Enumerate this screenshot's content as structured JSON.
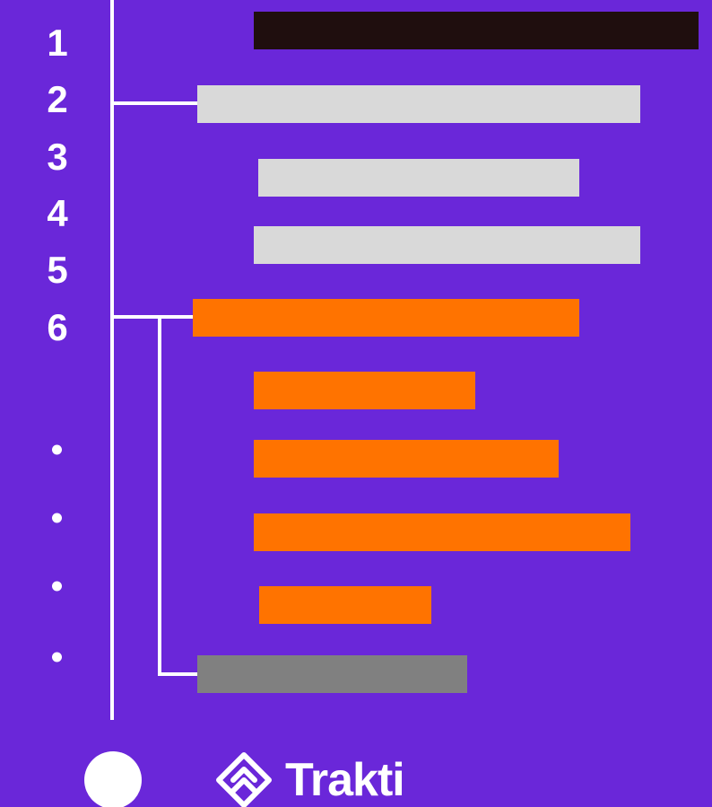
{
  "colors": {
    "background": "#6a27d9",
    "line": "#ffffff"
  },
  "numbers": [
    "1",
    "2",
    "3",
    "4",
    "5",
    "6"
  ],
  "bars": [
    {
      "color": "#1f0e0e"
    },
    {
      "color": "#d9d9d9"
    },
    {
      "color": "#d9d9d9"
    },
    {
      "color": "#d9d9d9"
    },
    {
      "color": "#ff7300"
    },
    {
      "color": "#ff7300"
    },
    {
      "color": "#ff7300"
    },
    {
      "color": "#ff7300"
    },
    {
      "color": "#ff7300"
    },
    {
      "color": "#808080"
    }
  ],
  "brand": {
    "name": "Trakti",
    "icon": "trakti-logo-icon"
  }
}
